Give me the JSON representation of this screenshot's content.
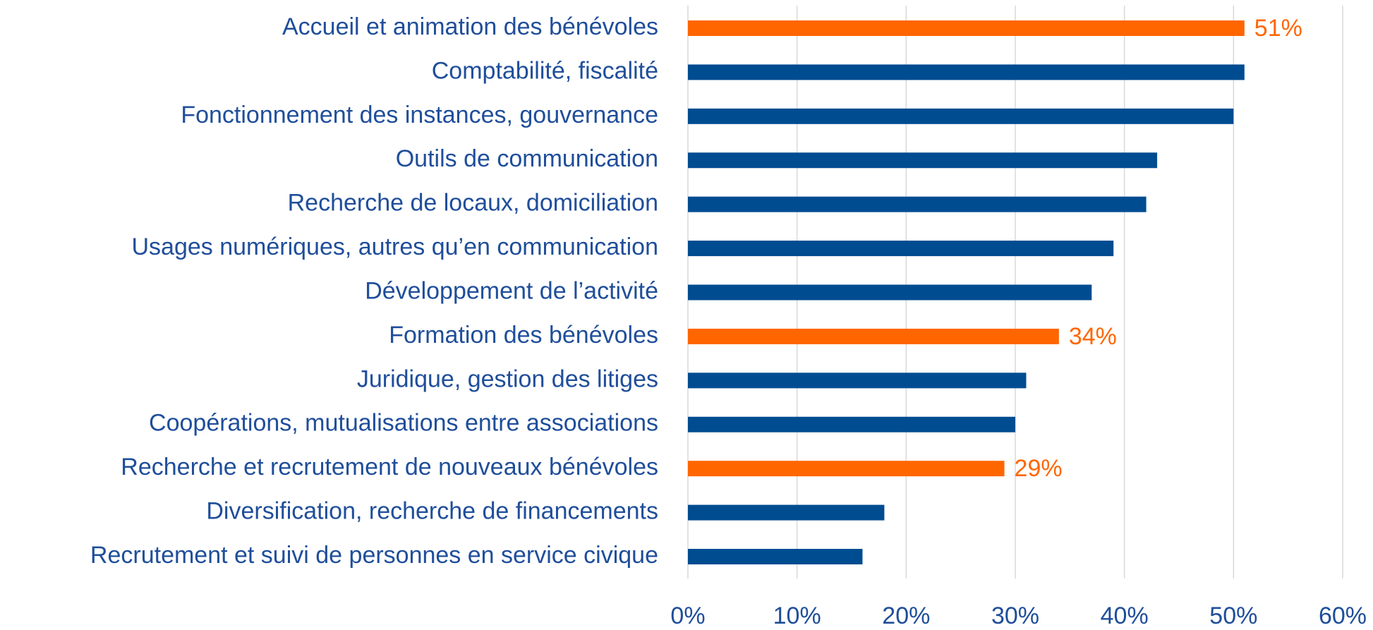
{
  "chart_data": {
    "type": "bar",
    "orientation": "horizontal",
    "categories": [
      "Accueil et animation des bénévoles",
      "Comptabilité, fiscalité",
      "Fonctionnement des instances, gouvernance",
      "Outils de communication",
      "Recherche de locaux, domiciliation",
      "Usages numériques, autres qu’en communication",
      "Développement de l’activité",
      "Formation des bénévoles",
      "Juridique, gestion des litiges",
      "Coopérations, mutualisations entre associations",
      "Recherche et recrutement de nouveaux bénévoles",
      "Diversification, recherche de financements",
      "Recrutement et suivi de personnes en service civique"
    ],
    "values": [
      51,
      51,
      50,
      43,
      42,
      39,
      37,
      34,
      31,
      30,
      29,
      18,
      16
    ],
    "value_labels": [
      "51%",
      null,
      null,
      null,
      null,
      null,
      null,
      "34%",
      null,
      null,
      "29%",
      null,
      null
    ],
    "colors": [
      "#ff6600",
      "#004c91",
      "#004c91",
      "#004c91",
      "#004c91",
      "#004c91",
      "#004c91",
      "#ff6600",
      "#004c91",
      "#004c91",
      "#ff6600",
      "#004c91",
      "#004c91"
    ],
    "xlim": [
      0,
      60
    ],
    "xticks": [
      {
        "value": 0,
        "label": "0%"
      },
      {
        "value": 10,
        "label": "10%"
      },
      {
        "value": 20,
        "label": "20%"
      },
      {
        "value": 30,
        "label": "30%"
      },
      {
        "value": 40,
        "label": "40%"
      },
      {
        "value": 50,
        "label": "50%"
      },
      {
        "value": 60,
        "label": "60%"
      }
    ],
    "grid": true
  }
}
